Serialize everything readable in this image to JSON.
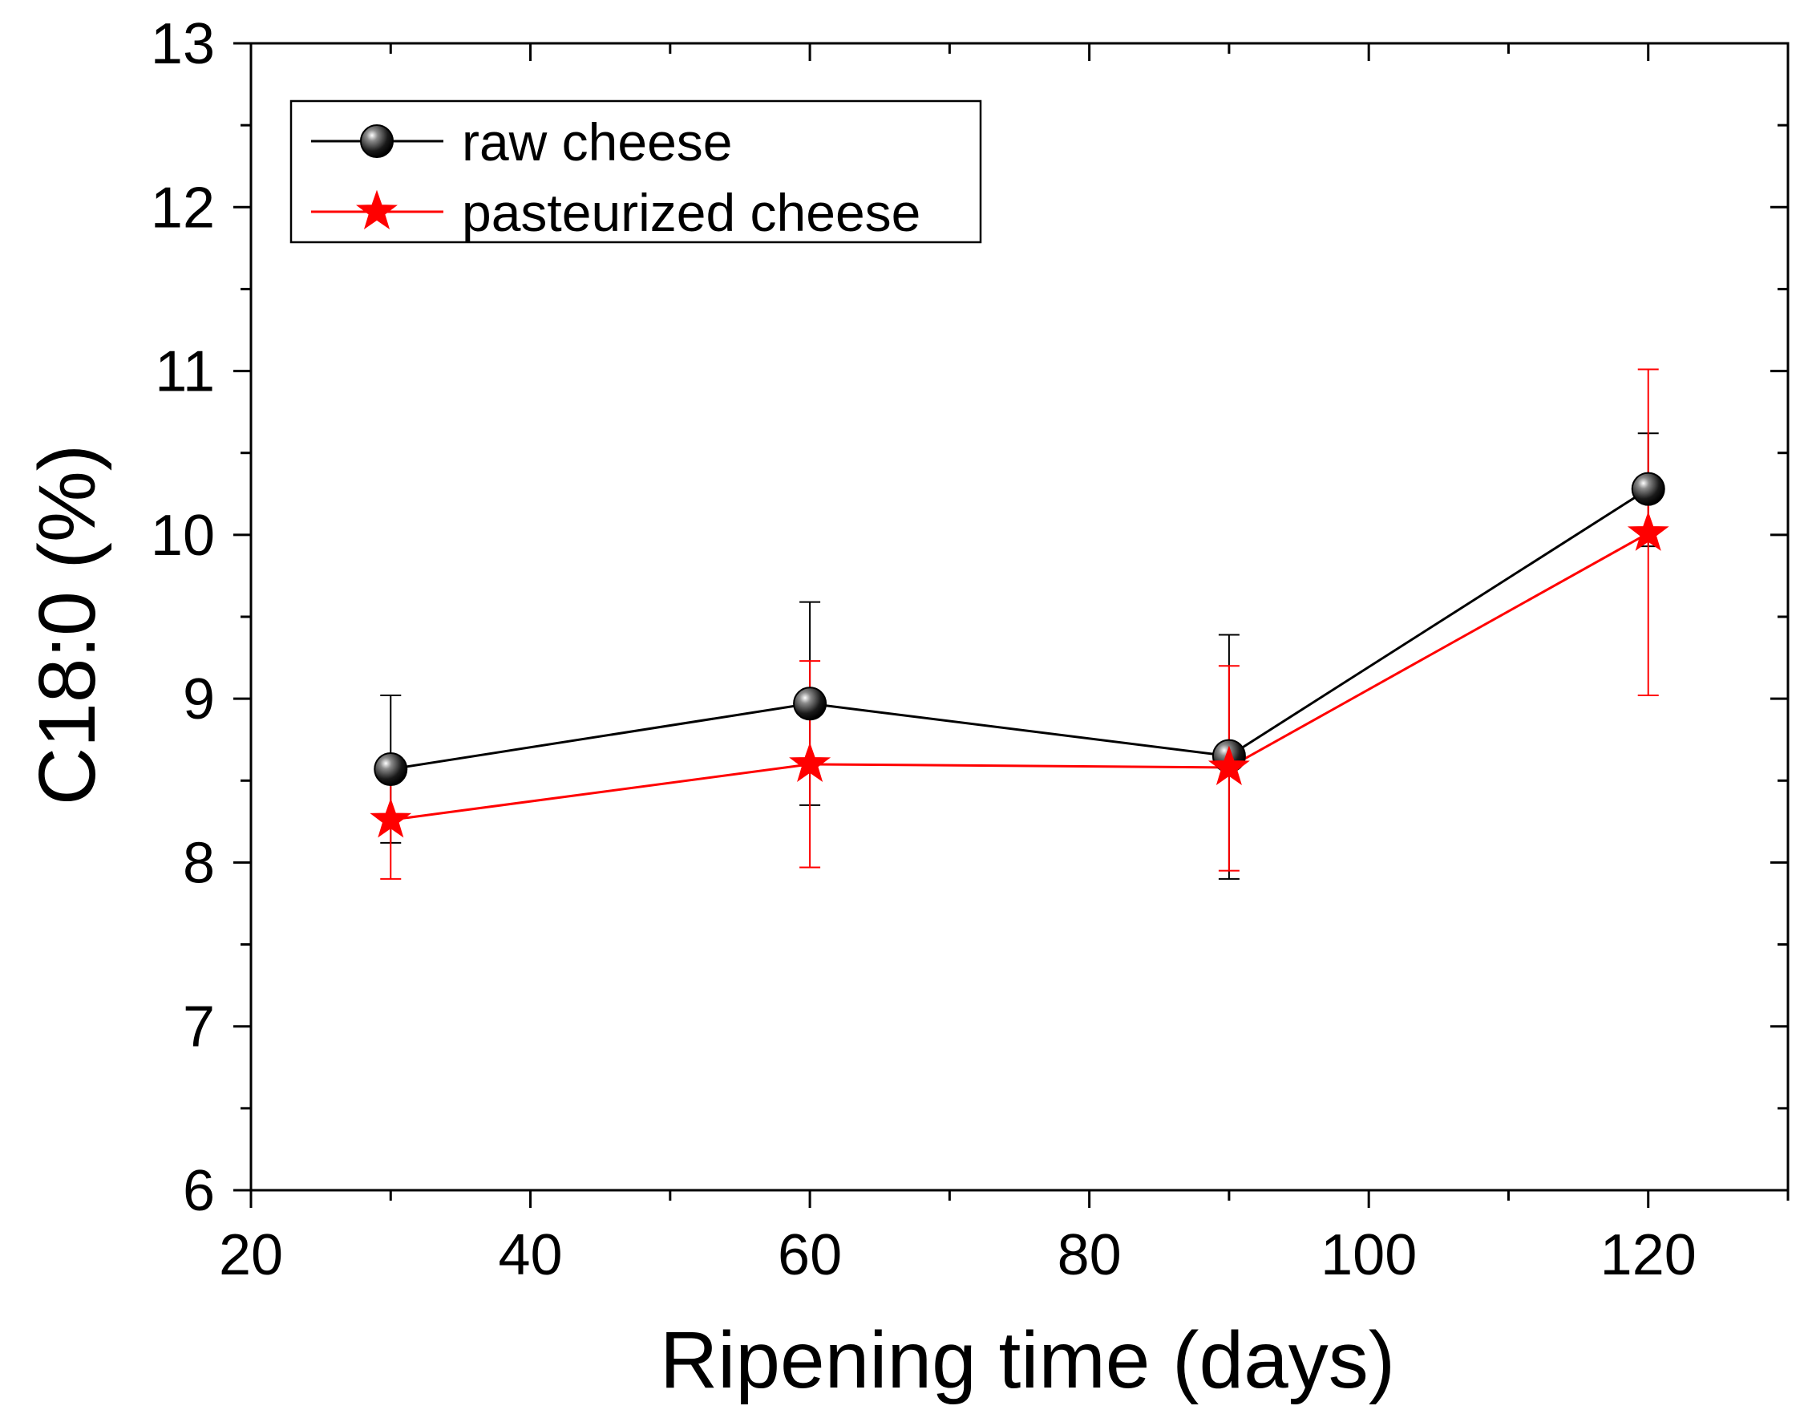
{
  "chart_data": {
    "type": "line",
    "title": "",
    "xlabel": "Ripening time (days)",
    "ylabel": "C18:0 (%)",
    "xlim": [
      20,
      130
    ],
    "ylim": [
      6,
      13
    ],
    "xticks": [
      20,
      40,
      60,
      80,
      100,
      120
    ],
    "yticks": [
      6,
      7,
      8,
      9,
      10,
      11,
      12,
      13
    ],
    "x_minor_step": 10,
    "y_minor_step": 0.5,
    "grid": false,
    "legend_position": "top-left",
    "x": [
      30,
      60,
      90,
      120
    ],
    "series": [
      {
        "name": "raw cheese",
        "color": "#000000",
        "marker": "sphere",
        "values": [
          8.57,
          8.97,
          8.65,
          10.28
        ],
        "error_low": [
          8.12,
          8.35,
          7.9,
          9.93
        ],
        "error_high": [
          9.02,
          9.59,
          9.39,
          10.62
        ]
      },
      {
        "name": "pasteurized cheese",
        "color": "#ff0000",
        "marker": "star",
        "values": [
          8.26,
          8.6,
          8.58,
          10.01
        ],
        "error_low": [
          7.9,
          7.97,
          7.95,
          9.02
        ],
        "error_high": [
          8.62,
          9.23,
          9.2,
          11.01
        ]
      }
    ]
  }
}
